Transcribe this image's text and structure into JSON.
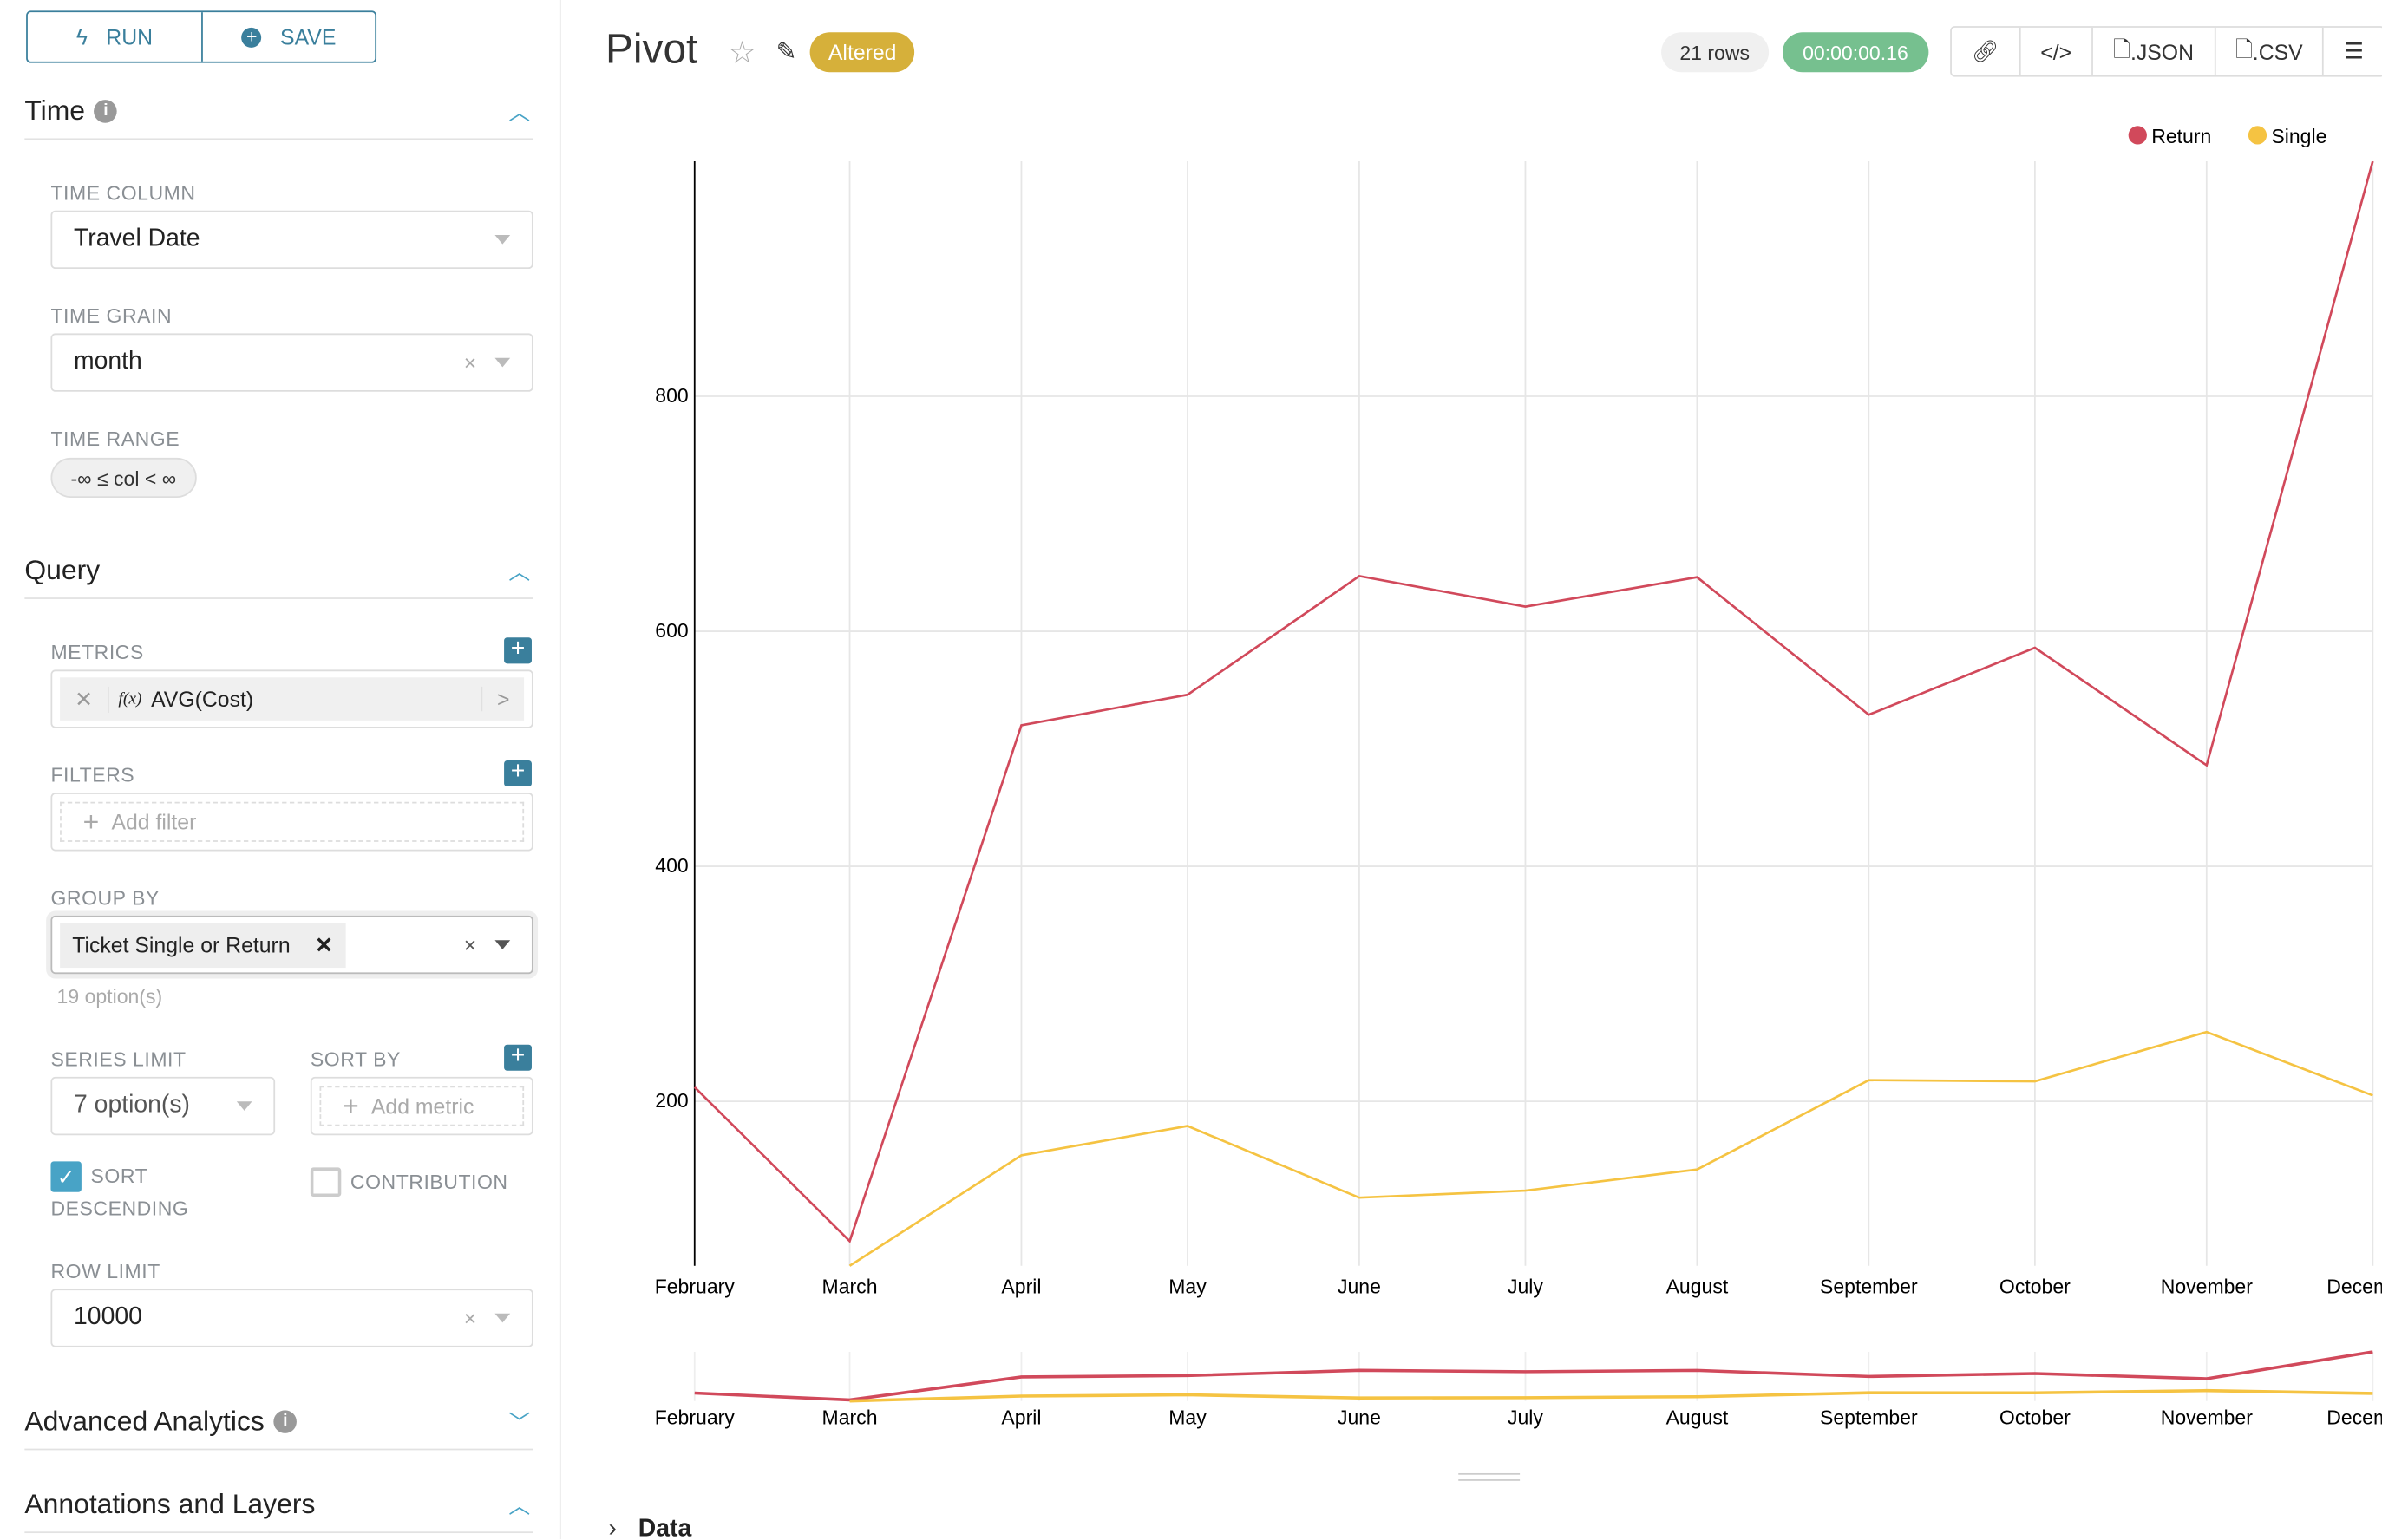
{
  "sidebar": {
    "run_label": "RUN",
    "save_label": "SAVE",
    "time": {
      "title": "Time",
      "time_column_label": "TIME COLUMN",
      "time_column_value": "Travel Date",
      "time_grain_label": "TIME GRAIN",
      "time_grain_value": "month",
      "time_range_label": "TIME RANGE",
      "time_range_value": "-∞ ≤ col < ∞"
    },
    "query": {
      "title": "Query",
      "metrics_label": "METRICS",
      "metric_value": "AVG(Cost)",
      "metric_fx": "f(x)",
      "filters_label": "FILTERS",
      "add_filter": "Add filter",
      "group_by_label": "GROUP BY",
      "group_by_tag": "Ticket Single or Return",
      "group_by_hint": "19 option(s)",
      "series_limit_label": "SERIES LIMIT",
      "series_limit_value": "7 option(s)",
      "sort_by_label": "SORT BY",
      "add_metric": "Add metric",
      "sort_desc_label_1": "SORT",
      "sort_desc_label_2": "DESCENDING",
      "sort_desc_checked": true,
      "contribution_label": "CONTRIBUTION",
      "contribution_checked": false,
      "row_limit_label": "ROW LIMIT",
      "row_limit_value": "10000"
    },
    "advanced": {
      "title": "Advanced Analytics"
    },
    "annotations": {
      "title": "Annotations and Layers"
    }
  },
  "header": {
    "title": "Pivot",
    "altered_badge": "Altered",
    "rows": "21 rows",
    "timer": "00:00:00.16",
    "json_label": ".JSON",
    "csv_label": ".CSV"
  },
  "data_section": {
    "label": "Data"
  },
  "colors": {
    "accent": "#3a7f9c",
    "return": "#d1495b",
    "single": "#f5c342",
    "altered": "#d6b03a",
    "timer": "#76c08f"
  },
  "chart_data": {
    "type": "line",
    "x": [
      "February",
      "March",
      "April",
      "May",
      "June",
      "July",
      "August",
      "September",
      "October",
      "November",
      "December"
    ],
    "yticks": [
      200,
      400,
      600,
      800
    ],
    "ylim": [
      60,
      1000
    ],
    "grid": true,
    "legend": "top-right",
    "series": [
      {
        "name": "Return",
        "color": "#d1495b",
        "values": [
          212,
          81,
          520,
          546,
          647,
          621,
          646,
          529,
          586,
          486,
          1000
        ]
      },
      {
        "name": "Single",
        "color": "#f5c342",
        "values": [
          null,
          60,
          154,
          179,
          118,
          124,
          142,
          218,
          217,
          259,
          205
        ]
      }
    ]
  }
}
